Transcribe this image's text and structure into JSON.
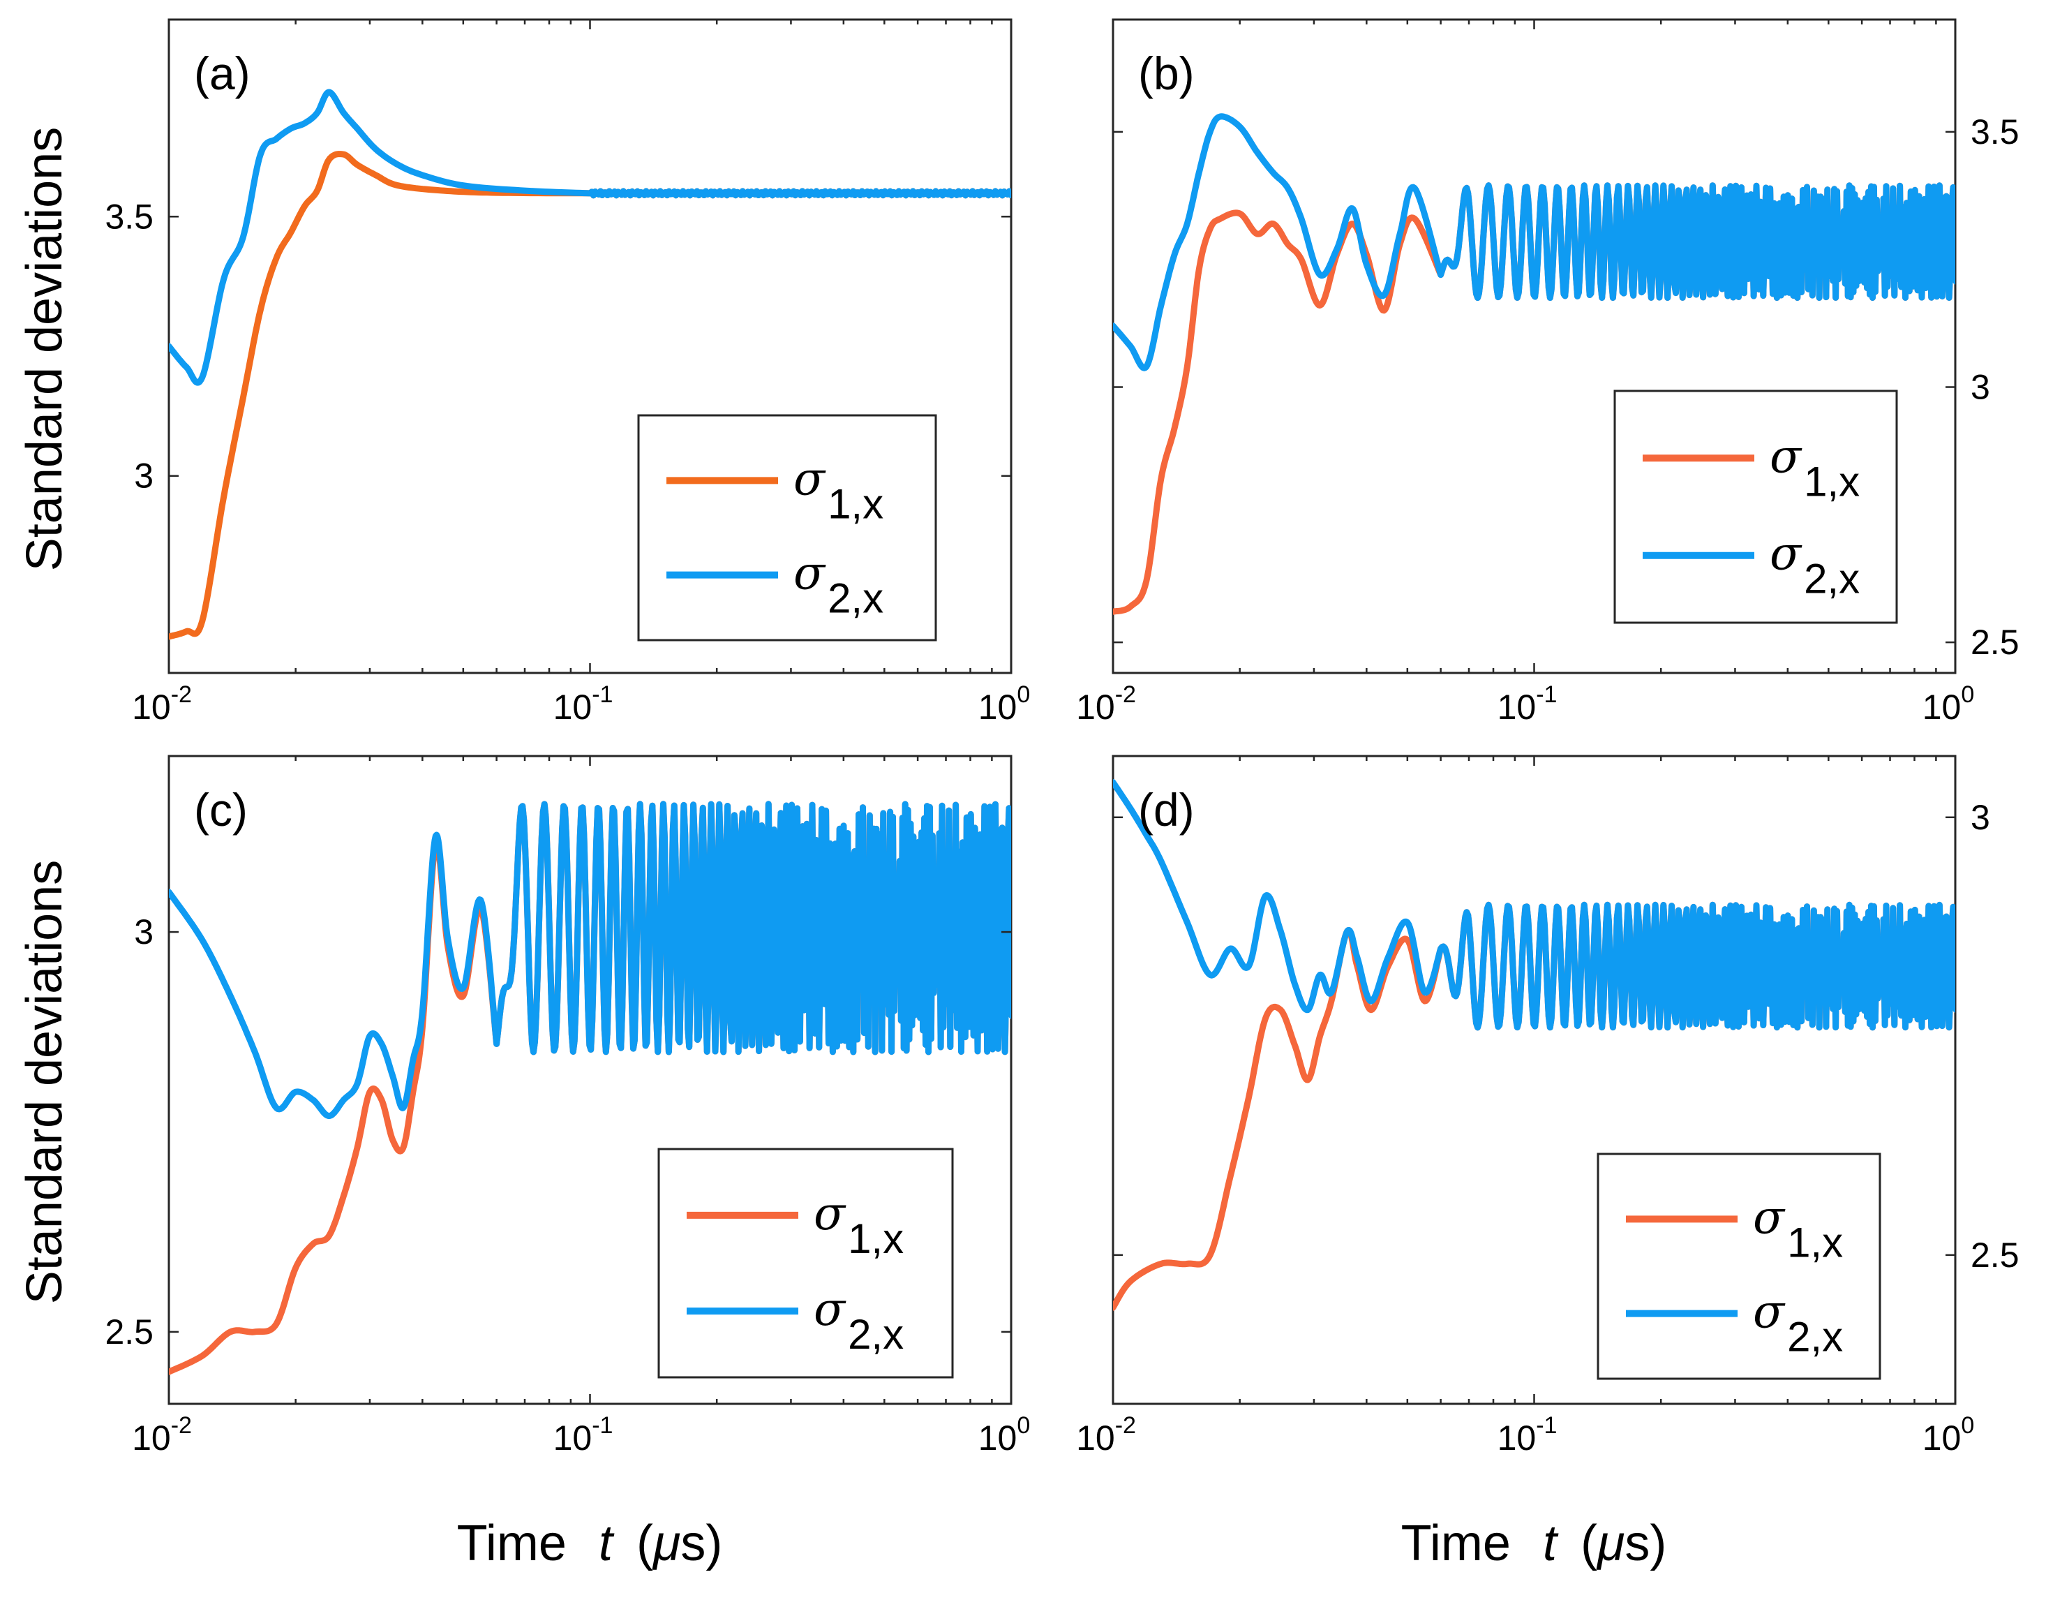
{
  "figure": {
    "ylabel": "Standard deviations",
    "xlabel_prefix": "Time",
    "xlabel_var": "t",
    "xlabel_unit_open": "(",
    "xlabel_unit_mu": "μ",
    "xlabel_unit_rest": "s)"
  },
  "colors": {
    "sigma1_a": "#F26B1D",
    "sigma1": "#F5673B",
    "sigma2": "#0F9BF2"
  },
  "chart_data": [
    {
      "type": "line",
      "panel": "(a)",
      "xscale": "log",
      "xlim": [
        0.01,
        1
      ],
      "ylim": [
        2.62,
        3.88
      ],
      "yaxis_side": "left",
      "x_ticks": [
        {
          "base": "10",
          "exp": "-2",
          "value": 0.01
        },
        {
          "base": "10",
          "exp": "-1",
          "value": 0.1
        },
        {
          "base": "10",
          "exp": "0",
          "value": 1
        }
      ],
      "y_ticks": [
        {
          "label": "3",
          "value": 3.0
        },
        {
          "label": "3.5",
          "value": 3.5
        }
      ],
      "legend": [
        {
          "symbol": "σ",
          "sub": "1,x"
        },
        {
          "symbol": "σ",
          "sub": "2,x"
        }
      ],
      "legend_position": "bottom-right",
      "series": [
        {
          "name": "σ1,x",
          "color_key": "sigma1_a",
          "steady": 3.545,
          "osc_amp": 0.0,
          "points": [
            [
              0.01,
              2.69
            ],
            [
              0.011,
              2.7
            ],
            [
              0.012,
              2.72
            ],
            [
              0.0135,
              2.96
            ],
            [
              0.015,
              3.15
            ],
            [
              0.0165,
              3.32
            ],
            [
              0.018,
              3.42
            ],
            [
              0.0195,
              3.47
            ],
            [
              0.021,
              3.52
            ],
            [
              0.0225,
              3.55
            ],
            [
              0.024,
              3.61
            ],
            [
              0.026,
              3.62
            ],
            [
              0.028,
              3.6
            ],
            [
              0.031,
              3.58
            ],
            [
              0.035,
              3.56
            ],
            [
              0.045,
              3.55
            ],
            [
              0.06,
              3.546
            ],
            [
              0.1,
              3.545
            ]
          ]
        },
        {
          "name": "σ2,x",
          "color_key": "sigma2",
          "steady": 3.545,
          "osc_amp": 0.0,
          "points": [
            [
              0.01,
              3.25
            ],
            [
              0.011,
              3.21
            ],
            [
              0.012,
              3.19
            ],
            [
              0.0135,
              3.38
            ],
            [
              0.015,
              3.46
            ],
            [
              0.0165,
              3.62
            ],
            [
              0.018,
              3.65
            ],
            [
              0.0195,
              3.67
            ],
            [
              0.021,
              3.68
            ],
            [
              0.0225,
              3.7
            ],
            [
              0.024,
              3.74
            ],
            [
              0.026,
              3.7
            ],
            [
              0.028,
              3.67
            ],
            [
              0.031,
              3.63
            ],
            [
              0.035,
              3.6
            ],
            [
              0.04,
              3.58
            ],
            [
              0.05,
              3.56
            ],
            [
              0.07,
              3.55
            ],
            [
              0.1,
              3.545
            ]
          ]
        }
      ]
    },
    {
      "type": "line",
      "panel": "(b)",
      "xscale": "log",
      "xlim": [
        0.01,
        1
      ],
      "ylim": [
        2.44,
        3.72
      ],
      "yaxis_side": "right",
      "x_ticks": [
        {
          "base": "10",
          "exp": "-2",
          "value": 0.01
        },
        {
          "base": "10",
          "exp": "-1",
          "value": 0.1
        },
        {
          "base": "10",
          "exp": "0",
          "value": 1
        }
      ],
      "y_ticks": [
        {
          "label": "2.5",
          "value": 2.5
        },
        {
          "label": "3",
          "value": 3.0
        },
        {
          "label": "3.5",
          "value": 3.5
        }
      ],
      "legend": [
        {
          "symbol": "σ",
          "sub": "1,x"
        },
        {
          "symbol": "σ",
          "sub": "2,x"
        }
      ],
      "legend_position": "bottom-right",
      "series": [
        {
          "name": "σ1,x",
          "color_key": "sigma1",
          "steady": 3.285,
          "osc_amp": 0.11,
          "points": [
            [
              0.01,
              2.56
            ],
            [
              0.011,
              2.57
            ],
            [
              0.012,
              2.62
            ],
            [
              0.013,
              2.82
            ],
            [
              0.014,
              2.92
            ],
            [
              0.015,
              3.04
            ],
            [
              0.016,
              3.23
            ],
            [
              0.017,
              3.31
            ],
            [
              0.018,
              3.33
            ],
            [
              0.02,
              3.34
            ],
            [
              0.022,
              3.3
            ],
            [
              0.024,
              3.32
            ],
            [
              0.026,
              3.28
            ],
            [
              0.028,
              3.25
            ],
            [
              0.031,
              3.16
            ],
            [
              0.034,
              3.26
            ],
            [
              0.037,
              3.32
            ],
            [
              0.04,
              3.26
            ],
            [
              0.044,
              3.15
            ],
            [
              0.048,
              3.28
            ],
            [
              0.052,
              3.33
            ],
            [
              0.06,
              3.22
            ]
          ]
        },
        {
          "name": "σ2,x",
          "color_key": "sigma2",
          "steady": 3.285,
          "osc_amp": 0.11,
          "points": [
            [
              0.01,
              3.12
            ],
            [
              0.011,
              3.08
            ],
            [
              0.012,
              3.04
            ],
            [
              0.013,
              3.16
            ],
            [
              0.014,
              3.26
            ],
            [
              0.015,
              3.32
            ],
            [
              0.016,
              3.42
            ],
            [
              0.017,
              3.5
            ],
            [
              0.018,
              3.53
            ],
            [
              0.02,
              3.51
            ],
            [
              0.022,
              3.46
            ],
            [
              0.024,
              3.42
            ],
            [
              0.026,
              3.39
            ],
            [
              0.028,
              3.33
            ],
            [
              0.031,
              3.22
            ],
            [
              0.034,
              3.27
            ],
            [
              0.037,
              3.35
            ],
            [
              0.04,
              3.24
            ],
            [
              0.044,
              3.18
            ],
            [
              0.048,
              3.3
            ],
            [
              0.052,
              3.39
            ],
            [
              0.06,
              3.22
            ]
          ]
        }
      ]
    },
    {
      "type": "line",
      "panel": "(c)",
      "xscale": "log",
      "xlim": [
        0.01,
        1
      ],
      "ylim": [
        2.41,
        3.22
      ],
      "yaxis_side": "left",
      "x_ticks": [
        {
          "base": "10",
          "exp": "-2",
          "value": 0.01
        },
        {
          "base": "10",
          "exp": "-1",
          "value": 0.1
        },
        {
          "base": "10",
          "exp": "0",
          "value": 1
        }
      ],
      "y_ticks": [
        {
          "label": "2.5",
          "value": 2.5
        },
        {
          "label": "3",
          "value": 3.0
        }
      ],
      "legend": [
        {
          "symbol": "σ",
          "sub": "1,x"
        },
        {
          "symbol": "σ",
          "sub": "2,x"
        }
      ],
      "legend_position": "bottom-right",
      "series": [
        {
          "name": "σ1,x",
          "color_key": "sigma1",
          "steady": 3.005,
          "osc_amp": 0.155,
          "points": [
            [
              0.01,
              2.45
            ],
            [
              0.012,
              2.47
            ],
            [
              0.014,
              2.5
            ],
            [
              0.016,
              2.5
            ],
            [
              0.018,
              2.51
            ],
            [
              0.02,
              2.58
            ],
            [
              0.022,
              2.61
            ],
            [
              0.024,
              2.62
            ],
            [
              0.026,
              2.67
            ],
            [
              0.028,
              2.73
            ],
            [
              0.03,
              2.8
            ],
            [
              0.032,
              2.79
            ],
            [
              0.034,
              2.74
            ],
            [
              0.036,
              2.73
            ],
            [
              0.038,
              2.8
            ],
            [
              0.04,
              2.88
            ],
            [
              0.043,
              3.11
            ],
            [
              0.046,
              2.98
            ],
            [
              0.05,
              2.92
            ],
            [
              0.055,
              3.03
            ],
            [
              0.06,
              2.86
            ]
          ]
        },
        {
          "name": "σ2,x",
          "color_key": "sigma2",
          "steady": 3.005,
          "osc_amp": 0.155,
          "points": [
            [
              0.01,
              3.05
            ],
            [
              0.012,
              2.99
            ],
            [
              0.014,
              2.92
            ],
            [
              0.016,
              2.85
            ],
            [
              0.018,
              2.78
            ],
            [
              0.02,
              2.8
            ],
            [
              0.022,
              2.79
            ],
            [
              0.024,
              2.77
            ],
            [
              0.026,
              2.79
            ],
            [
              0.028,
              2.81
            ],
            [
              0.03,
              2.87
            ],
            [
              0.032,
              2.86
            ],
            [
              0.034,
              2.82
            ],
            [
              0.036,
              2.78
            ],
            [
              0.038,
              2.84
            ],
            [
              0.04,
              2.9
            ],
            [
              0.043,
              3.12
            ],
            [
              0.046,
              2.99
            ],
            [
              0.05,
              2.93
            ],
            [
              0.055,
              3.04
            ],
            [
              0.06,
              2.86
            ]
          ]
        }
      ]
    },
    {
      "type": "line",
      "panel": "(d)",
      "xscale": "log",
      "xlim": [
        0.01,
        1
      ],
      "ylim": [
        2.33,
        3.07
      ],
      "yaxis_side": "right",
      "x_ticks": [
        {
          "base": "10",
          "exp": "-2",
          "value": 0.01
        },
        {
          "base": "10",
          "exp": "-1",
          "value": 0.1
        },
        {
          "base": "10",
          "exp": "0",
          "value": 1
        }
      ],
      "y_ticks": [
        {
          "label": "2.5",
          "value": 2.5
        },
        {
          "label": "3",
          "value": 3.0
        }
      ],
      "legend": [
        {
          "symbol": "σ",
          "sub": "1,x"
        },
        {
          "symbol": "σ",
          "sub": "2,x"
        }
      ],
      "legend_position": "bottom-right",
      "series": [
        {
          "name": "σ1,x",
          "color_key": "sigma1",
          "steady": 2.83,
          "osc_amp": 0.07,
          "points": [
            [
              0.01,
              2.44
            ],
            [
              0.011,
              2.47
            ],
            [
              0.013,
              2.49
            ],
            [
              0.015,
              2.49
            ],
            [
              0.017,
              2.5
            ],
            [
              0.019,
              2.59
            ],
            [
              0.021,
              2.68
            ],
            [
              0.023,
              2.77
            ],
            [
              0.025,
              2.78
            ],
            [
              0.027,
              2.74
            ],
            [
              0.029,
              2.7
            ],
            [
              0.031,
              2.75
            ],
            [
              0.033,
              2.79
            ],
            [
              0.036,
              2.87
            ],
            [
              0.038,
              2.83
            ],
            [
              0.041,
              2.78
            ],
            [
              0.045,
              2.83
            ],
            [
              0.05,
              2.86
            ],
            [
              0.055,
              2.79
            ],
            [
              0.06,
              2.85
            ]
          ]
        },
        {
          "name": "σ2,x",
          "color_key": "sigma2",
          "steady": 2.83,
          "osc_amp": 0.07,
          "points": [
            [
              0.01,
              3.04
            ],
            [
              0.011,
              3.01
            ],
            [
              0.012,
              2.98
            ],
            [
              0.013,
              2.95
            ],
            [
              0.015,
              2.88
            ],
            [
              0.017,
              2.82
            ],
            [
              0.019,
              2.85
            ],
            [
              0.021,
              2.83
            ],
            [
              0.023,
              2.91
            ],
            [
              0.025,
              2.87
            ],
            [
              0.027,
              2.81
            ],
            [
              0.029,
              2.78
            ],
            [
              0.031,
              2.82
            ],
            [
              0.033,
              2.8
            ],
            [
              0.036,
              2.87
            ],
            [
              0.038,
              2.84
            ],
            [
              0.041,
              2.79
            ],
            [
              0.045,
              2.84
            ],
            [
              0.05,
              2.88
            ],
            [
              0.055,
              2.8
            ],
            [
              0.06,
              2.85
            ]
          ]
        }
      ]
    }
  ]
}
